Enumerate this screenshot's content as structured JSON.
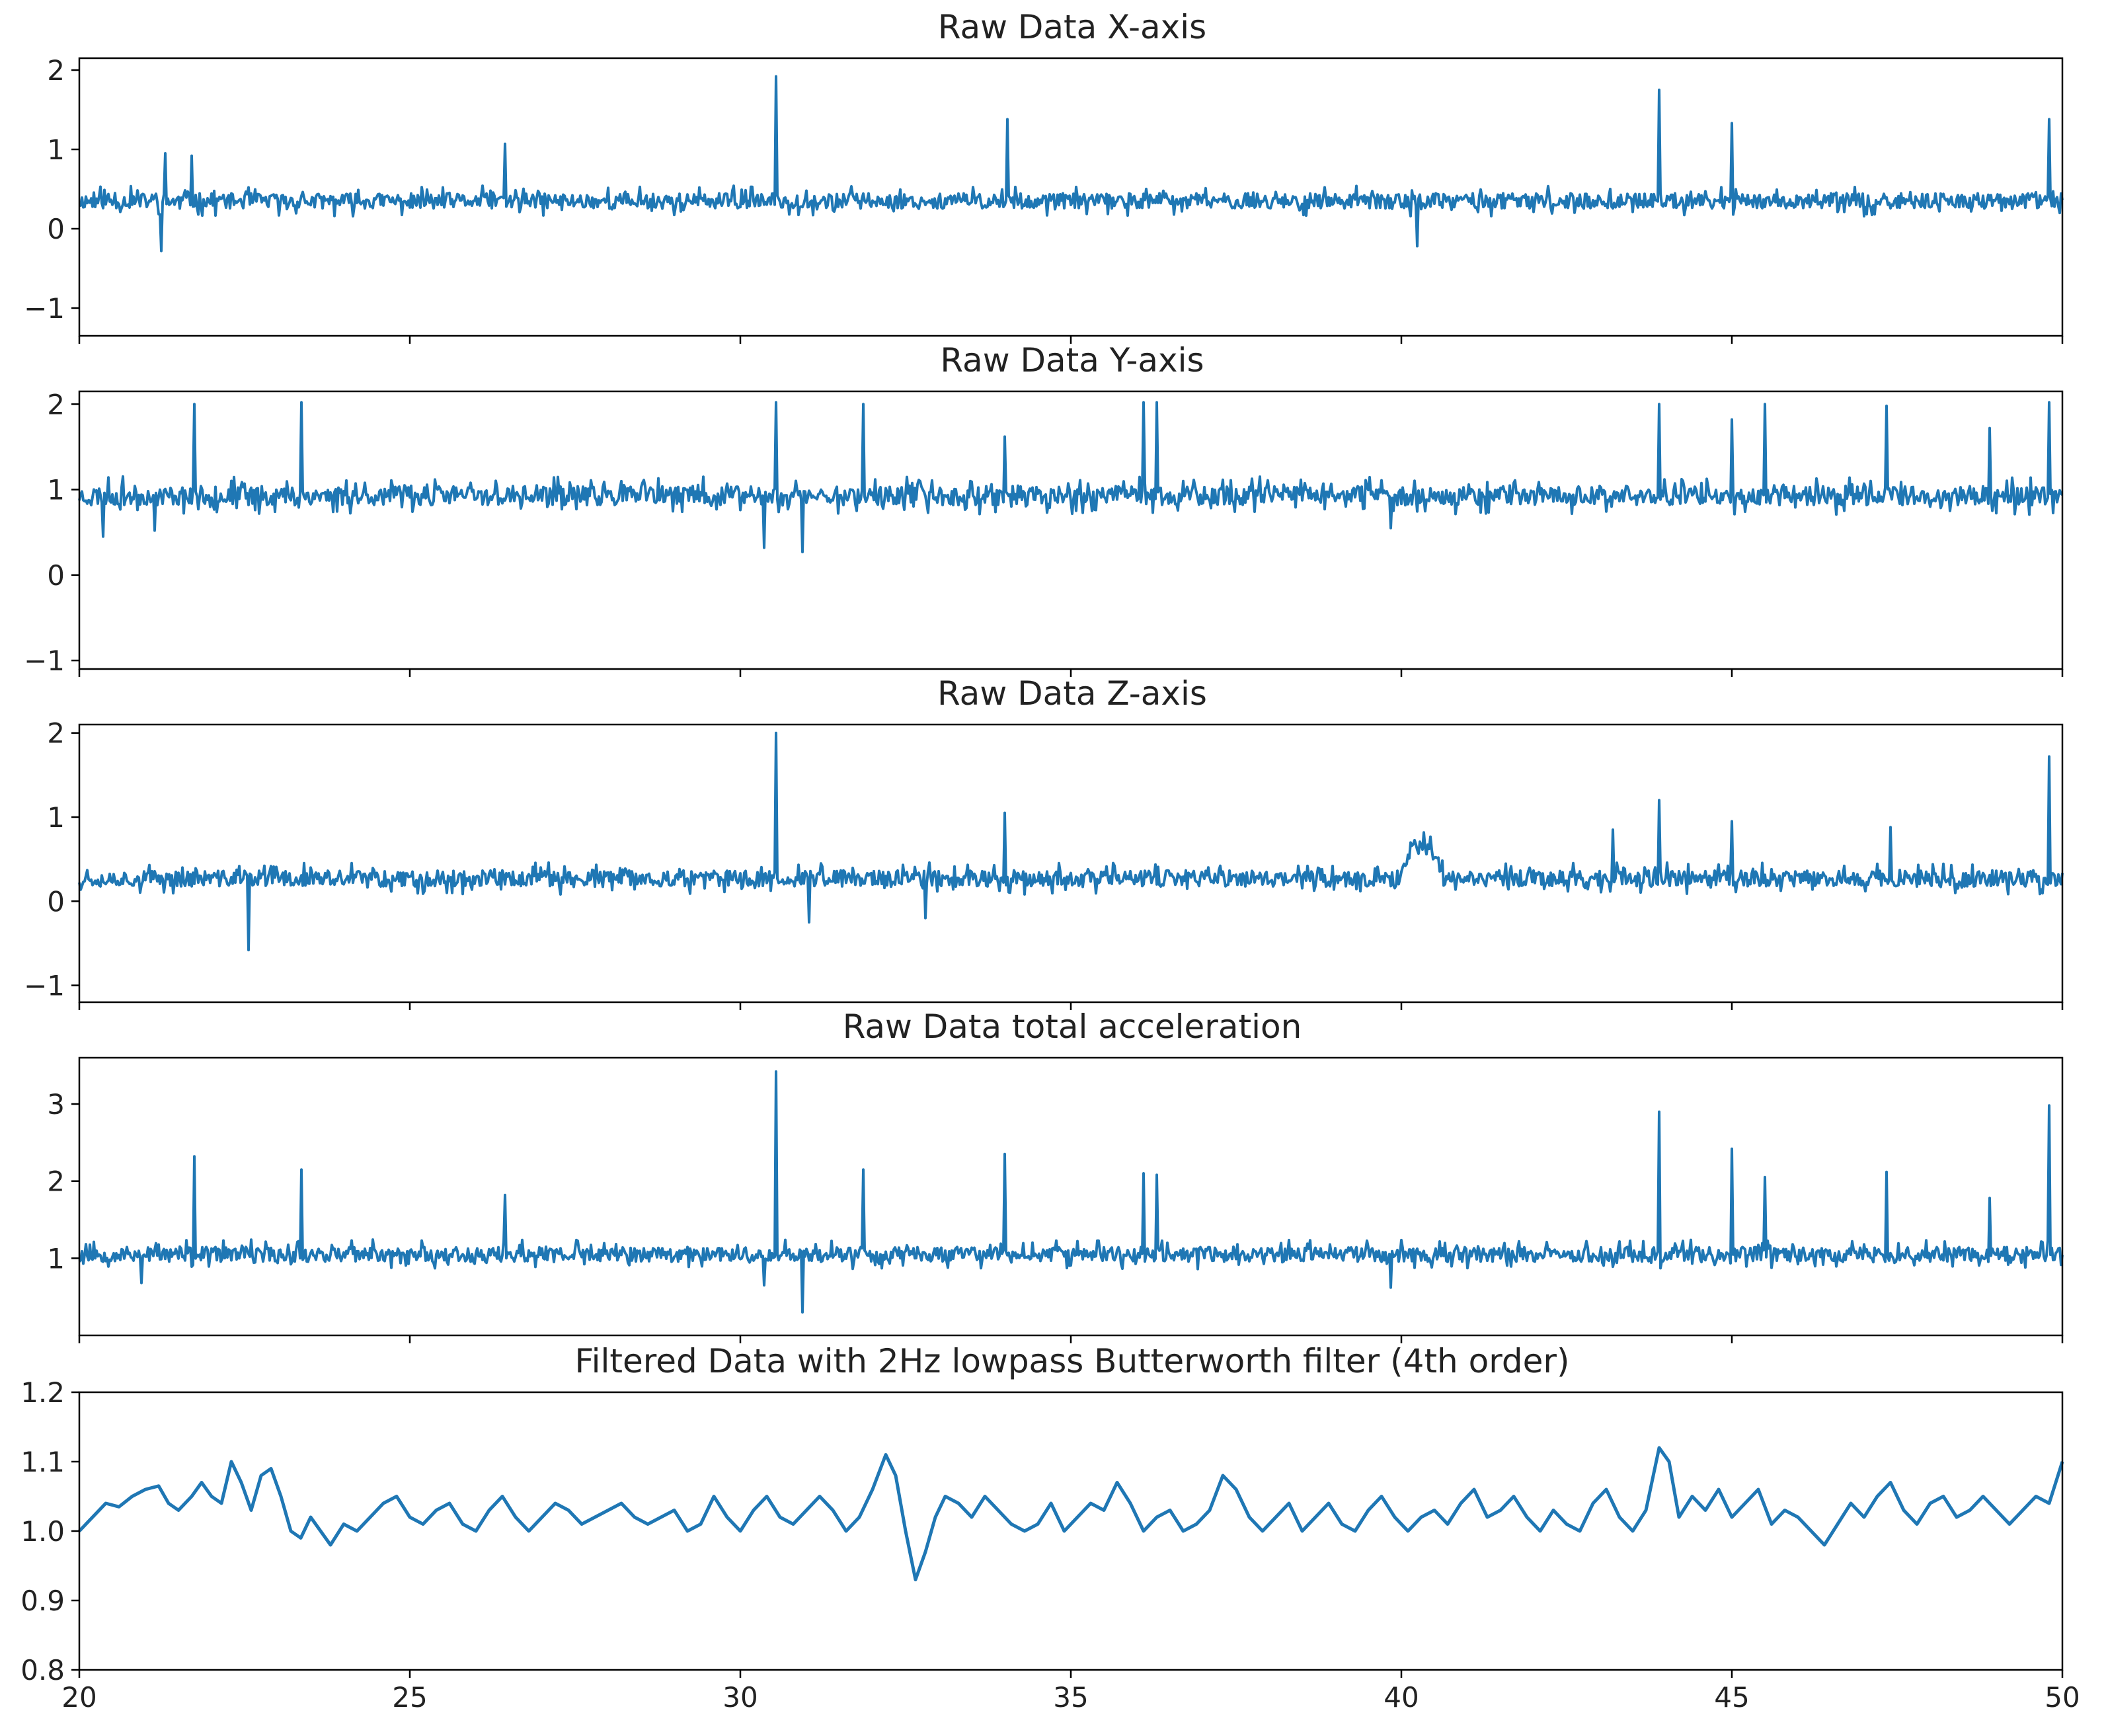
{
  "figure": {
    "line_color": "#1f77b4",
    "axis_color": "#000000",
    "background": "#ffffff"
  },
  "chart_data": [
    {
      "type": "line",
      "title": "Raw Data X-axis",
      "xlabel": "",
      "ylabel": "",
      "xlim": [
        20,
        50
      ],
      "ylim": [
        -1.35,
        2.15
      ],
      "yticks": [
        -1,
        0,
        1,
        2
      ],
      "xticks": [
        20,
        25,
        30,
        35,
        40,
        45,
        50
      ],
      "show_xtick_labels": false,
      "series": [
        {
          "name": "x",
          "baseline": 0.35,
          "noise": 0.12,
          "seed": 11,
          "spikes": [
            [
              21.3,
              0.95
            ],
            [
              21.7,
              0.92
            ],
            [
              26.45,
              1.07
            ],
            [
              30.55,
              1.92
            ],
            [
              34.05,
              1.38
            ],
            [
              43.9,
              1.75
            ],
            [
              45.0,
              1.33
            ],
            [
              49.8,
              1.38
            ]
          ],
          "dips": [
            [
              21.25,
              -0.28
            ],
            [
              40.25,
              -0.22
            ]
          ]
        }
      ]
    },
    {
      "type": "line",
      "title": "Raw Data Y-axis",
      "xlabel": "",
      "ylabel": "",
      "xlim": [
        20,
        50
      ],
      "ylim": [
        -1.1,
        2.15
      ],
      "yticks": [
        -1,
        0,
        1,
        2
      ],
      "xticks": [
        20,
        25,
        30,
        35,
        40,
        45,
        50
      ],
      "show_xtick_labels": false,
      "series": [
        {
          "name": "y",
          "baseline": 0.93,
          "noise": 0.14,
          "seed": 23,
          "spikes": [
            [
              21.75,
              2.0
            ],
            [
              23.35,
              2.02
            ],
            [
              30.55,
              2.02
            ],
            [
              31.85,
              2.0
            ],
            [
              34.0,
              1.62
            ],
            [
              36.1,
              2.02
            ],
            [
              36.3,
              2.02
            ],
            [
              43.9,
              2.0
            ],
            [
              45.0,
              1.82
            ],
            [
              45.5,
              2.0
            ],
            [
              47.35,
              1.98
            ],
            [
              48.9,
              1.72
            ],
            [
              49.8,
              2.02
            ]
          ],
          "dips": [
            [
              20.35,
              0.45
            ],
            [
              21.15,
              0.52
            ],
            [
              30.35,
              0.32
            ],
            [
              30.95,
              0.27
            ],
            [
              39.85,
              0.55
            ]
          ]
        }
      ]
    },
    {
      "type": "line",
      "title": "Raw Data Z-axis",
      "xlabel": "",
      "ylabel": "",
      "xlim": [
        20,
        50
      ],
      "ylim": [
        -1.2,
        2.1
      ],
      "yticks": [
        -1,
        0,
        1,
        2
      ],
      "xticks": [
        20,
        25,
        30,
        35,
        40,
        45,
        50
      ],
      "show_xtick_labels": false,
      "series": [
        {
          "name": "z",
          "baseline": 0.27,
          "noise": 0.12,
          "seed": 37,
          "spikes": [
            [
              30.55,
              2.0
            ],
            [
              34.0,
              1.05
            ],
            [
              43.2,
              0.85
            ],
            [
              43.9,
              1.2
            ],
            [
              45.0,
              0.95
            ],
            [
              47.4,
              0.88
            ],
            [
              49.8,
              1.72
            ]
          ],
          "dips": [
            [
              22.55,
              -0.58
            ],
            [
              31.05,
              -0.25
            ],
            [
              32.8,
              -0.2
            ]
          ],
          "bumps": [
            [
              40.3,
              0.4,
              0.35
            ]
          ]
        }
      ]
    },
    {
      "type": "line",
      "title": "Raw Data total acceleration",
      "xlabel": "",
      "ylabel": "",
      "xlim": [
        20,
        50
      ],
      "ylim": [
        0.0,
        3.6
      ],
      "yticks": [
        1,
        2,
        3
      ],
      "xticks": [
        20,
        25,
        30,
        35,
        40,
        45,
        50
      ],
      "show_xtick_labels": false,
      "series": [
        {
          "name": "total",
          "baseline": 1.05,
          "noise": 0.12,
          "seed": 53,
          "spikes": [
            [
              21.75,
              2.32
            ],
            [
              23.35,
              2.15
            ],
            [
              26.45,
              1.82
            ],
            [
              30.55,
              3.42
            ],
            [
              31.85,
              2.15
            ],
            [
              34.0,
              2.35
            ],
            [
              36.1,
              2.1
            ],
            [
              36.3,
              2.08
            ],
            [
              43.9,
              2.9
            ],
            [
              45.0,
              2.42
            ],
            [
              45.5,
              2.05
            ],
            [
              47.35,
              2.12
            ],
            [
              48.9,
              1.78
            ],
            [
              49.8,
              2.98
            ]
          ],
          "dips": [
            [
              30.95,
              0.3
            ],
            [
              30.35,
              0.65
            ],
            [
              39.85,
              0.62
            ],
            [
              20.95,
              0.68
            ]
          ]
        }
      ]
    },
    {
      "type": "line",
      "title": "Filtered Data with 2Hz lowpass Butterworth filter (4th order)",
      "xlabel": "",
      "ylabel": "",
      "xlim": [
        20,
        50
      ],
      "ylim": [
        0.8,
        1.2
      ],
      "yticks": [
        0.8,
        0.9,
        1.0,
        1.1,
        1.2
      ],
      "ytick_labels": [
        "0.8",
        "0.9",
        "1.0",
        "1.1",
        "1.2"
      ],
      "xticks": [
        20,
        25,
        30,
        35,
        40,
        45,
        50
      ],
      "xtick_labels": [
        "20",
        "25",
        "30",
        "35",
        "40",
        "45",
        "50"
      ],
      "show_xtick_labels": true,
      "series": [
        {
          "name": "filtered",
          "points": [
            [
              20.0,
              1.0
            ],
            [
              20.2,
              1.02
            ],
            [
              20.4,
              1.04
            ],
            [
              20.6,
              1.035
            ],
            [
              20.8,
              1.05
            ],
            [
              21.0,
              1.06
            ],
            [
              21.2,
              1.065
            ],
            [
              21.35,
              1.04
            ],
            [
              21.5,
              1.03
            ],
            [
              21.7,
              1.05
            ],
            [
              21.85,
              1.07
            ],
            [
              22.0,
              1.05
            ],
            [
              22.15,
              1.04
            ],
            [
              22.3,
              1.1
            ],
            [
              22.45,
              1.07
            ],
            [
              22.6,
              1.03
            ],
            [
              22.75,
              1.08
            ],
            [
              22.9,
              1.09
            ],
            [
              23.05,
              1.05
            ],
            [
              23.2,
              1.0
            ],
            [
              23.35,
              0.99
            ],
            [
              23.5,
              1.02
            ],
            [
              23.65,
              1.0
            ],
            [
              23.8,
              0.98
            ],
            [
              24.0,
              1.01
            ],
            [
              24.2,
              1.0
            ],
            [
              24.4,
              1.02
            ],
            [
              24.6,
              1.04
            ],
            [
              24.8,
              1.05
            ],
            [
              25.0,
              1.02
            ],
            [
              25.2,
              1.01
            ],
            [
              25.4,
              1.03
            ],
            [
              25.6,
              1.04
            ],
            [
              25.8,
              1.01
            ],
            [
              26.0,
              1.0
            ],
            [
              26.2,
              1.03
            ],
            [
              26.4,
              1.05
            ],
            [
              26.6,
              1.02
            ],
            [
              26.8,
              1.0
            ],
            [
              27.0,
              1.02
            ],
            [
              27.2,
              1.04
            ],
            [
              27.4,
              1.03
            ],
            [
              27.6,
              1.01
            ],
            [
              27.8,
              1.02
            ],
            [
              28.0,
              1.03
            ],
            [
              28.2,
              1.04
            ],
            [
              28.4,
              1.02
            ],
            [
              28.6,
              1.01
            ],
            [
              28.8,
              1.02
            ],
            [
              29.0,
              1.03
            ],
            [
              29.2,
              1.0
            ],
            [
              29.4,
              1.01
            ],
            [
              29.6,
              1.05
            ],
            [
              29.8,
              1.02
            ],
            [
              30.0,
              1.0
            ],
            [
              30.2,
              1.03
            ],
            [
              30.4,
              1.05
            ],
            [
              30.6,
              1.02
            ],
            [
              30.8,
              1.01
            ],
            [
              31.0,
              1.03
            ],
            [
              31.2,
              1.05
            ],
            [
              31.4,
              1.03
            ],
            [
              31.6,
              1.0
            ],
            [
              31.8,
              1.02
            ],
            [
              32.0,
              1.06
            ],
            [
              32.2,
              1.11
            ],
            [
              32.35,
              1.08
            ],
            [
              32.5,
              1.0
            ],
            [
              32.65,
              0.93
            ],
            [
              32.8,
              0.97
            ],
            [
              32.95,
              1.02
            ],
            [
              33.1,
              1.05
            ],
            [
              33.3,
              1.04
            ],
            [
              33.5,
              1.02
            ],
            [
              33.7,
              1.05
            ],
            [
              33.9,
              1.03
            ],
            [
              34.1,
              1.01
            ],
            [
              34.3,
              1.0
            ],
            [
              34.5,
              1.01
            ],
            [
              34.7,
              1.04
            ],
            [
              34.9,
              1.0
            ],
            [
              35.1,
              1.02
            ],
            [
              35.3,
              1.04
            ],
            [
              35.5,
              1.03
            ],
            [
              35.7,
              1.07
            ],
            [
              35.9,
              1.04
            ],
            [
              36.1,
              1.0
            ],
            [
              36.3,
              1.02
            ],
            [
              36.5,
              1.03
            ],
            [
              36.7,
              1.0
            ],
            [
              36.9,
              1.01
            ],
            [
              37.1,
              1.03
            ],
            [
              37.3,
              1.08
            ],
            [
              37.5,
              1.06
            ],
            [
              37.7,
              1.02
            ],
            [
              37.9,
              1.0
            ],
            [
              38.1,
              1.02
            ],
            [
              38.3,
              1.04
            ],
            [
              38.5,
              1.0
            ],
            [
              38.7,
              1.02
            ],
            [
              38.9,
              1.04
            ],
            [
              39.1,
              1.01
            ],
            [
              39.3,
              1.0
            ],
            [
              39.5,
              1.03
            ],
            [
              39.7,
              1.05
            ],
            [
              39.9,
              1.02
            ],
            [
              40.1,
              1.0
            ],
            [
              40.3,
              1.02
            ],
            [
              40.5,
              1.03
            ],
            [
              40.7,
              1.01
            ],
            [
              40.9,
              1.04
            ],
            [
              41.1,
              1.06
            ],
            [
              41.3,
              1.02
            ],
            [
              41.5,
              1.03
            ],
            [
              41.7,
              1.05
            ],
            [
              41.9,
              1.02
            ],
            [
              42.1,
              1.0
            ],
            [
              42.3,
              1.03
            ],
            [
              42.5,
              1.01
            ],
            [
              42.7,
              1.0
            ],
            [
              42.9,
              1.04
            ],
            [
              43.1,
              1.06
            ],
            [
              43.3,
              1.02
            ],
            [
              43.5,
              1.0
            ],
            [
              43.7,
              1.03
            ],
            [
              43.9,
              1.12
            ],
            [
              44.05,
              1.1
            ],
            [
              44.2,
              1.02
            ],
            [
              44.4,
              1.05
            ],
            [
              44.6,
              1.03
            ],
            [
              44.8,
              1.06
            ],
            [
              45.0,
              1.02
            ],
            [
              45.2,
              1.04
            ],
            [
              45.4,
              1.06
            ],
            [
              45.6,
              1.01
            ],
            [
              45.8,
              1.03
            ],
            [
              46.0,
              1.02
            ],
            [
              46.2,
              1.0
            ],
            [
              46.4,
              0.98
            ],
            [
              46.6,
              1.01
            ],
            [
              46.8,
              1.04
            ],
            [
              47.0,
              1.02
            ],
            [
              47.2,
              1.05
            ],
            [
              47.4,
              1.07
            ],
            [
              47.6,
              1.03
            ],
            [
              47.8,
              1.01
            ],
            [
              48.0,
              1.04
            ],
            [
              48.2,
              1.05
            ],
            [
              48.4,
              1.02
            ],
            [
              48.6,
              1.03
            ],
            [
              48.8,
              1.05
            ],
            [
              49.0,
              1.03
            ],
            [
              49.2,
              1.01
            ],
            [
              49.4,
              1.03
            ],
            [
              49.6,
              1.05
            ],
            [
              49.8,
              1.04
            ],
            [
              50.0,
              1.1
            ]
          ]
        }
      ]
    }
  ]
}
